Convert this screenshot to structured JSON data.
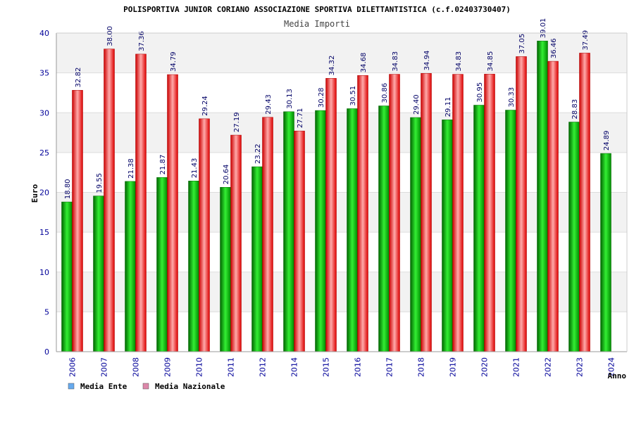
{
  "chart_data": {
    "type": "bar",
    "title": "POLISPORTIVA JUNIOR CORIANO ASSOCIAZIONE SPORTIVA DILETTANTISTICA (c.f.02403730407)",
    "subtitle": "Media Importi",
    "ylabel": "Euro",
    "xlabel": "Anno",
    "ylim": [
      0,
      40
    ],
    "yticks": [
      0,
      5,
      10,
      15,
      20,
      25,
      30,
      35,
      40
    ],
    "categories": [
      "2006",
      "2007",
      "2008",
      "2009",
      "2010",
      "2011",
      "2012",
      "2014",
      "2015",
      "2016",
      "2017",
      "2018",
      "2019",
      "2020",
      "2021",
      "2022",
      "2023",
      "2024"
    ],
    "series": [
      {
        "name": "Media Ente",
        "color": "#00aa00",
        "labels": [
          "18.80",
          "19.55",
          "21.38",
          "21.87",
          "21.43",
          "20.64",
          "23.22",
          "30.13",
          "30.28",
          "30.51",
          "30.86",
          "29.40",
          "29.11",
          "30.95",
          "30.33",
          "39.01",
          "28.83",
          "24.89"
        ],
        "values": [
          18.8,
          19.55,
          21.38,
          21.87,
          21.43,
          20.64,
          23.22,
          30.13,
          30.28,
          30.51,
          30.86,
          29.4,
          29.11,
          30.95,
          30.33,
          39.01,
          28.83,
          24.89
        ]
      },
      {
        "name": "Media Nazionale",
        "color": "#dd0000",
        "labels": [
          "32.82",
          "38.00",
          "37.36",
          "34.79",
          "29.24",
          "27.19",
          "29.43",
          "27.71",
          "34.32",
          "34.68",
          "34.83",
          "34.94",
          "34.83",
          "34.85",
          "37.05",
          "36.46",
          "37.49",
          null
        ],
        "values": [
          32.82,
          38.0,
          37.36,
          34.79,
          29.24,
          27.19,
          29.43,
          27.71,
          34.32,
          34.68,
          34.83,
          34.94,
          34.83,
          34.85,
          37.05,
          36.46,
          37.49,
          null
        ]
      }
    ],
    "legend": {
      "placement": "bottom-left",
      "items": [
        {
          "label": "Media Ente",
          "color": "#66aaee"
        },
        {
          "label": "Media Nazionale",
          "color": "#dd88aa"
        }
      ]
    },
    "grid": true,
    "grid_band_color": "#f2f2f2"
  }
}
